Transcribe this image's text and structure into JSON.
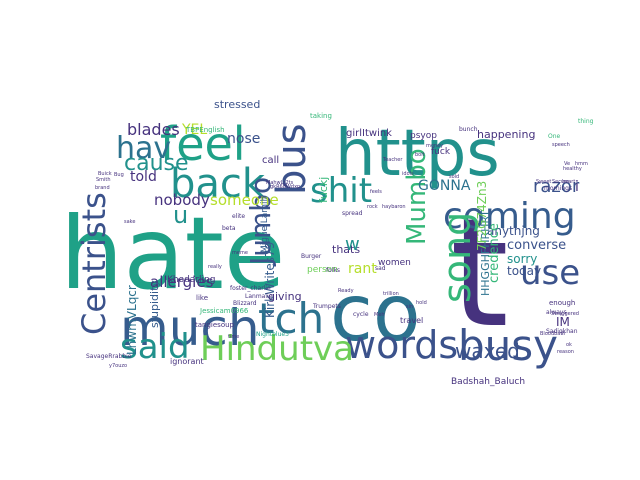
{
  "palette": {
    "dark_purple": "#46327e",
    "indigo": "#3b528b",
    "blue": "#365c8d",
    "slate": "#2c728e",
    "teal": "#21918c",
    "green_teal": "#1fa187",
    "green": "#35b779",
    "lime": "#6ece58",
    "yellow_green": "#b5de2b",
    "deep": "#440154",
    "light_blue": "#6fa0c0",
    "pale_green": "#8fd26e"
  },
  "words": [
    {
      "text": "hate",
      "color": "#1fa187"
    },
    {
      "text": "t",
      "color": "#46327e"
    },
    {
      "text": "co",
      "color": "#2c728e"
    },
    {
      "text": "https",
      "color": "#21918c"
    },
    {
      "text": "much",
      "color": "#365c8d"
    },
    {
      "text": "feel",
      "color": "#1fa187"
    },
    {
      "text": "back",
      "color": "#21918c"
    },
    {
      "text": "bus",
      "color": "#3b528b"
    },
    {
      "text": "busy",
      "color": "#3b528b"
    },
    {
      "text": "tch",
      "color": "#2c728e"
    },
    {
      "text": "said",
      "color": "#21918c"
    },
    {
      "text": "words",
      "color": "#3b528b"
    },
    {
      "text": "Hindutva",
      "color": "#6ece58"
    },
    {
      "text": "coming",
      "color": "#365c8d"
    },
    {
      "text": "shit",
      "color": "#21918c"
    },
    {
      "text": "use",
      "color": "#3b528b"
    },
    {
      "text": "song",
      "color": "#35b779"
    },
    {
      "text": "Centrists",
      "color": "#3b528b"
    },
    {
      "text": "hav",
      "color": "#2c728e"
    },
    {
      "text": "cause",
      "color": "#21918c"
    },
    {
      "text": "Jumbo",
      "color": "#3b528b"
    },
    {
      "text": "Mumbo",
      "color": "#35b779"
    },
    {
      "text": "u",
      "color": "#21918c"
    },
    {
      "text": "waxed",
      "color": "#3b528b"
    },
    {
      "text": "blades",
      "color": "#46327e"
    },
    {
      "text": "nose",
      "color": "#3b528b"
    },
    {
      "text": "told",
      "color": "#46327e"
    },
    {
      "text": "nobody",
      "color": "#46327e"
    },
    {
      "text": "someone",
      "color": "#b5de2b"
    },
    {
      "text": "allergies",
      "color": "#46327e"
    },
    {
      "text": "GONNA",
      "color": "#2c728e"
    },
    {
      "text": "razor",
      "color": "#3b528b"
    },
    {
      "text": "sorry",
      "color": "#21918c"
    },
    {
      "text": "today",
      "color": "#3b528b"
    },
    {
      "text": "converse",
      "color": "#3b528b"
    },
    {
      "text": "anythjng",
      "color": "#3b528b"
    },
    {
      "text": "credence",
      "color": "#35b779"
    },
    {
      "text": "HHGGHFHRHRT",
      "color": "#2c728e"
    },
    {
      "text": "7F2G74Zn3",
      "color": "#6ece58"
    },
    {
      "text": "IM",
      "color": "#46327e"
    },
    {
      "text": "rant",
      "color": "#b5de2b"
    },
    {
      "text": "thats",
      "color": "#46327e"
    },
    {
      "text": "w",
      "color": "#21918c"
    },
    {
      "text": "stupidity",
      "color": "#365c8d"
    },
    {
      "text": "LhwmVLqcr",
      "color": "#2c728e"
    },
    {
      "text": "KirkWrites79",
      "color": "#365c8d"
    },
    {
      "text": "giving",
      "color": "#46327e"
    },
    {
      "text": "women",
      "color": "#46327e"
    },
    {
      "text": "stressed",
      "color": "#3b528b"
    },
    {
      "text": "YEL",
      "color": "#b5de2b"
    },
    {
      "text": "call",
      "color": "#46327e"
    },
    {
      "text": "happening",
      "color": "#46327e"
    },
    {
      "text": "fuck",
      "color": "#46327e"
    },
    {
      "text": "psyop",
      "color": "#46327e"
    },
    {
      "text": "i",
      "color": "#46327e"
    },
    {
      "text": "fuckj",
      "color": "#35b779"
    },
    {
      "text": "person",
      "color": "#6ece58"
    },
    {
      "text": "Badshah_Baluch",
      "color": "#46327e"
    },
    {
      "text": "ignorant",
      "color": "#46327e"
    },
    {
      "text": "travel",
      "color": "#46327e"
    },
    {
      "text": "enough",
      "color": "#46327e"
    },
    {
      "text": "bunch",
      "color": "#46327e"
    },
    {
      "text": "mornings",
      "color": "#46327e"
    },
    {
      "text": "Khodarling",
      "color": "#46327e"
    },
    {
      "text": "MiguelLamih",
      "color": "#365c8d"
    },
    {
      "text": "girlItwink",
      "color": "#46327e"
    },
    {
      "text": "taking",
      "color": "#35b779"
    },
    {
      "text": "TBPEnglish",
      "color": "#35b779"
    },
    {
      "text": "thing",
      "color": "#35b779"
    },
    {
      "text": "One",
      "color": "#35b779"
    },
    {
      "text": "elite",
      "color": "#46327e"
    },
    {
      "text": "beta",
      "color": "#46327e"
    },
    {
      "text": "like",
      "color": "#46327e"
    },
    {
      "text": "Trumpets",
      "color": "#46327e"
    },
    {
      "text": "folks",
      "color": "#46327e"
    },
    {
      "text": "spread",
      "color": "#46327e"
    },
    {
      "text": "Burger",
      "color": "#46327e"
    },
    {
      "text": "sad",
      "color": "#46327e"
    },
    {
      "text": "always",
      "color": "#46327e"
    },
    {
      "text": "Jessicam0966",
      "color": "#35b779"
    },
    {
      "text": "tangiesoup",
      "color": "#46327e"
    },
    {
      "text": "SavageRrabbie",
      "color": "#46327e"
    },
    {
      "text": "y7ouzo",
      "color": "#46327e"
    },
    {
      "text": "Lanmaiie",
      "color": "#46327e"
    },
    {
      "text": "Sadiqkhan",
      "color": "#46327e"
    },
    {
      "text": "Nightblue3",
      "color": "#1fa187"
    },
    {
      "text": "gkR6BWdxp",
      "color": "#46327e"
    },
    {
      "text": "MahwLr2ts",
      "color": "#46327e"
    },
    {
      "text": "haybaron",
      "color": "#46327e"
    },
    {
      "text": "Buick",
      "color": "#46327e"
    },
    {
      "text": "brand",
      "color": "#46327e"
    },
    {
      "text": "rock",
      "color": "#46327e"
    },
    {
      "text": "Smith",
      "color": "#46327e"
    },
    {
      "text": "Bug",
      "color": "#46327e"
    },
    {
      "text": "idols",
      "color": "#46327e"
    },
    {
      "text": "feels",
      "color": "#46327e"
    },
    {
      "text": "Ready",
      "color": "#46327e"
    },
    {
      "text": "sake",
      "color": "#46327e"
    },
    {
      "text": "Teacher",
      "color": "#46327e"
    },
    {
      "text": "cycle",
      "color": "#46327e"
    },
    {
      "text": "Meh",
      "color": "#46327e"
    },
    {
      "text": "speech",
      "color": "#46327e"
    },
    {
      "text": "heart",
      "color": "#46327e"
    },
    {
      "text": "Secure",
      "color": "#46327e"
    },
    {
      "text": "Sweet",
      "color": "#46327e"
    },
    {
      "text": "Ve",
      "color": "#46327e"
    },
    {
      "text": "hmm",
      "color": "#46327e"
    },
    {
      "text": "Blizzard",
      "color": "#46327e"
    },
    {
      "text": "really",
      "color": "#46327e"
    },
    {
      "text": "meme",
      "color": "#46327e"
    },
    {
      "text": "foster_charlie",
      "color": "#46327e"
    },
    {
      "text": "time",
      "color": "#46327e"
    },
    {
      "text": "healthy",
      "color": "#46327e"
    },
    {
      "text": "money",
      "color": "#46327e"
    },
    {
      "text": "bolt",
      "color": "#46327e"
    },
    {
      "text": "sold",
      "color": "#46327e"
    },
    {
      "text": "sin",
      "color": "#46327e"
    },
    {
      "text": "hold",
      "color": "#46327e"
    },
    {
      "text": "trillion",
      "color": "#46327e"
    },
    {
      "text": "Swaggered",
      "color": "#46327e"
    },
    {
      "text": "Bloodbath",
      "color": "#46327e"
    },
    {
      "text": "ok",
      "color": "#46327e"
    },
    {
      "text": "reason",
      "color": "#46327e"
    }
  ]
}
